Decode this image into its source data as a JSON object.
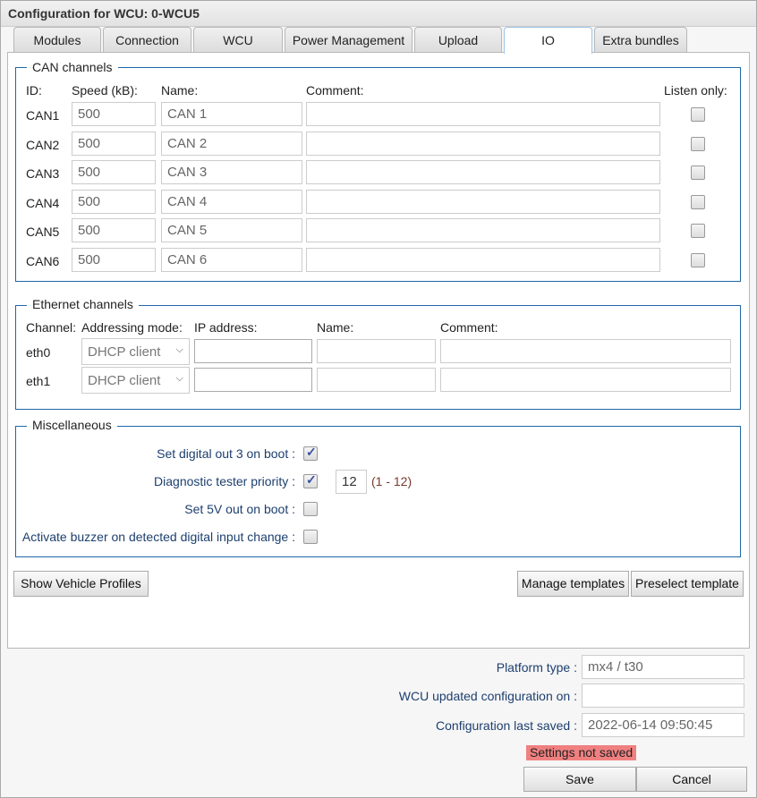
{
  "title": "Configuration for WCU: 0-WCU5",
  "tabs": [
    {
      "label": "Modules"
    },
    {
      "label": "Connection"
    },
    {
      "label": "WCU"
    },
    {
      "label": "Power Management"
    },
    {
      "label": "Upload"
    },
    {
      "label": "IO",
      "active": true
    },
    {
      "label": "Extra bundles"
    }
  ],
  "can": {
    "legend": "CAN channels",
    "headers": {
      "id": "ID:",
      "speed": "Speed (kB):",
      "name": "Name:",
      "comment": "Comment:",
      "listen": "Listen only:"
    },
    "rows": [
      {
        "id": "CAN1",
        "speed": "500",
        "name": "CAN 1",
        "comment": "",
        "listen_only": false
      },
      {
        "id": "CAN2",
        "speed": "500",
        "name": "CAN 2",
        "comment": "",
        "listen_only": false
      },
      {
        "id": "CAN3",
        "speed": "500",
        "name": "CAN 3",
        "comment": "",
        "listen_only": false
      },
      {
        "id": "CAN4",
        "speed": "500",
        "name": "CAN 4",
        "comment": "",
        "listen_only": false
      },
      {
        "id": "CAN5",
        "speed": "500",
        "name": "CAN 5",
        "comment": "",
        "listen_only": false
      },
      {
        "id": "CAN6",
        "speed": "500",
        "name": "CAN 6",
        "comment": "",
        "listen_only": false
      }
    ]
  },
  "eth": {
    "legend": "Ethernet channels",
    "headers": {
      "channel": "Channel:",
      "mode": "Addressing mode:",
      "ip": "IP address:",
      "name": "Name:",
      "comment": "Comment:"
    },
    "rows": [
      {
        "channel": "eth0",
        "mode": "DHCP client",
        "ip": "",
        "name": "",
        "comment": ""
      },
      {
        "channel": "eth1",
        "mode": "DHCP client",
        "ip": "",
        "name": "",
        "comment": ""
      }
    ]
  },
  "misc": {
    "legend": "Miscellaneous",
    "digital_out": {
      "label": "Set digital out 3 on boot :",
      "checked": true
    },
    "diag": {
      "label": "Diagnostic tester priority :",
      "checked": true,
      "value": "12",
      "range": "(1 - 12)"
    },
    "fivev": {
      "label": "Set 5V out on boot :",
      "checked": false
    },
    "buzzer": {
      "label": "Activate buzzer on detected digital input change :",
      "checked": false
    }
  },
  "buttons": {
    "vehicle_profiles": "Show Vehicle Profiles",
    "manage_templates": "Manage templates",
    "preselect_template": "Preselect template",
    "save": "Save",
    "cancel": "Cancel"
  },
  "footer": {
    "platform_label": "Platform type :",
    "platform_value": "mx4 / t30",
    "updated_label": "WCU updated configuration on :",
    "updated_value": "",
    "saved_label": "Configuration last saved :",
    "saved_value": "2022-06-14 09:50:45",
    "status": "Settings not saved",
    "status_color": "#f08080"
  }
}
